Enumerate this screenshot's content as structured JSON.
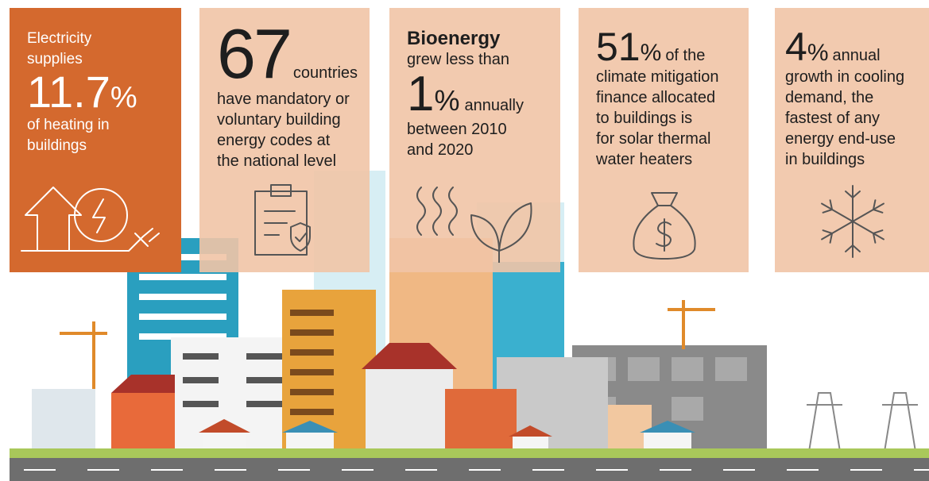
{
  "cards": [
    {
      "top": [
        "Electricity",
        "supplies"
      ],
      "big": "11.7",
      "unit": "%",
      "after": "",
      "lines": [
        "of heating in",
        "buildings"
      ]
    },
    {
      "top": [],
      "big": "67",
      "unit": "",
      "after": "countries",
      "lines": [
        "have mandatory or",
        "voluntary building",
        "energy codes at",
        "the national level"
      ]
    },
    {
      "top": [
        "Bioenergy",
        "grew less than"
      ],
      "big": "1",
      "unit": "%",
      "after": "annually",
      "lines": [
        "between 2010",
        "and 2020"
      ]
    },
    {
      "top": [],
      "big": "51",
      "unit": "%",
      "after": "of the",
      "lines": [
        "climate mitigation",
        "finance allocated",
        "to buildings is",
        "for solar thermal",
        "water heaters"
      ]
    },
    {
      "top": [],
      "big": "4",
      "unit": "%",
      "after": "annual",
      "lines": [
        "growth in cooling",
        "demand, the",
        "fastest of any",
        "energy end-use",
        "in buildings"
      ]
    }
  ]
}
